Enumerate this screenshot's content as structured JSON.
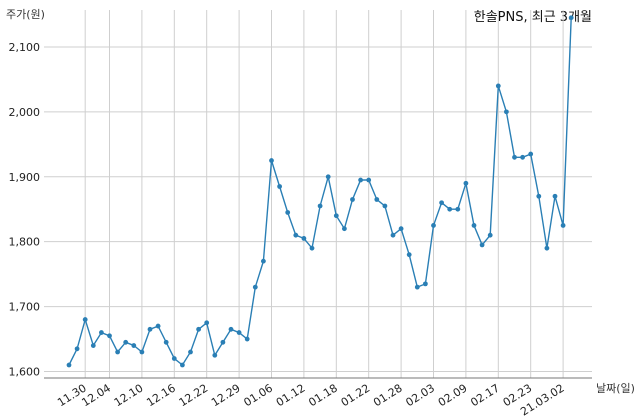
{
  "chart_data": {
    "type": "line",
    "title": "한솔PNS, 최근 3개월",
    "ylabel": "주가(원)",
    "xlabel": "날짜(일)",
    "ylim": [
      1590,
      2160
    ],
    "yticks": [
      1600,
      1700,
      1800,
      1900,
      2000,
      2100
    ],
    "ytick_labels": [
      "1,600",
      "1,700",
      "1,800",
      "1,900",
      "2,000",
      "2,100"
    ],
    "xtick_labels": [
      "11.30",
      "12.04",
      "12.10",
      "12.16",
      "12.22",
      "12.29",
      "01.06",
      "01.12",
      "01.18",
      "01.22",
      "01.28",
      "02.03",
      "02.09",
      "02.17",
      "02.23",
      "21.03.02"
    ],
    "xtick_indices": [
      2,
      5,
      9,
      13,
      17,
      21,
      25,
      29,
      33,
      37,
      41,
      45,
      49,
      53,
      57,
      61
    ],
    "grid": true,
    "series": [
      {
        "color": "#2a7fb5",
        "values": [
          1610,
          1635,
          1680,
          1640,
          1660,
          1655,
          1630,
          1645,
          1640,
          1630,
          1665,
          1670,
          1645,
          1620,
          1610,
          1630,
          1665,
          1675,
          1625,
          1645,
          1665,
          1660,
          1650,
          1730,
          1770,
          1925,
          1885,
          1845,
          1810,
          1805,
          1790,
          1855,
          1900,
          1840,
          1820,
          1865,
          1895,
          1895,
          1865,
          1855,
          1810,
          1820,
          1780,
          1730,
          1735,
          1825,
          1860,
          1850,
          1850,
          1890,
          1825,
          1795,
          1810,
          2040,
          2000,
          1930,
          1930,
          1935,
          1870,
          1790,
          1870,
          1825,
          2145
        ]
      }
    ]
  }
}
